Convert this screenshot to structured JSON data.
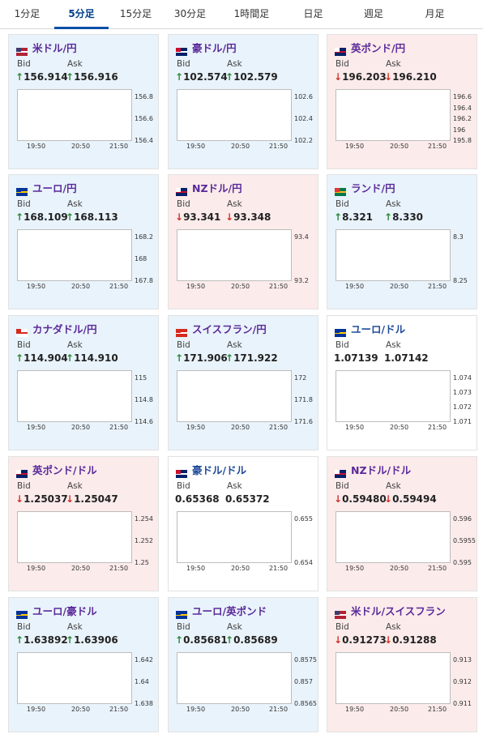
{
  "tabs": [
    {
      "label": "1分足",
      "active": false
    },
    {
      "label": "5分足",
      "active": true
    },
    {
      "label": "15分足",
      "active": false
    },
    {
      "label": "30分足",
      "active": false
    },
    {
      "label": "1時間足",
      "active": false
    },
    {
      "label": "日足",
      "active": false
    },
    {
      "label": "週足",
      "active": false
    },
    {
      "label": "月足",
      "active": false
    }
  ],
  "labels": {
    "bid": "Bid",
    "ask": "Ask"
  },
  "x_ticks": [
    "19:50",
    "20:50",
    "21:50"
  ],
  "pairs": [
    {
      "name": "米ドル/円",
      "flag": "us-flag",
      "trend": "up",
      "bid": "156.914",
      "ask": "156.916",
      "bid_dir": "up",
      "ask_dir": "up",
      "y_ticks": [
        "156.8",
        "156.6",
        "156.4"
      ]
    },
    {
      "name": "豪ドル/円",
      "flag": "au-flag",
      "trend": "up",
      "bid": "102.574",
      "ask": "102.579",
      "bid_dir": "up",
      "ask_dir": "up",
      "y_ticks": [
        "102.6",
        "102.4",
        "102.2"
      ]
    },
    {
      "name": "英ポンド/円",
      "flag": "gb-flag",
      "trend": "down",
      "bid": "196.203",
      "ask": "196.210",
      "bid_dir": "down",
      "ask_dir": "down",
      "y_ticks": [
        "196.6",
        "196.4",
        "196.2",
        "196",
        "195.8"
      ]
    },
    {
      "name": "ユーロ/円",
      "flag": "eu-flag",
      "trend": "up",
      "bid": "168.109",
      "ask": "168.113",
      "bid_dir": "up",
      "ask_dir": "up",
      "y_ticks": [
        "168.2",
        "168",
        "167.8"
      ]
    },
    {
      "name": "NZドル/円",
      "flag": "nz-flag",
      "trend": "down",
      "bid": "93.341",
      "ask": "93.348",
      "bid_dir": "down",
      "ask_dir": "down",
      "y_ticks": [
        "93.4",
        "93.2"
      ]
    },
    {
      "name": "ランド/円",
      "flag": "za-flag",
      "trend": "up",
      "bid": "8.321",
      "ask": "8.330",
      "bid_dir": "up",
      "ask_dir": "up",
      "y_ticks": [
        "8.3",
        "8.25"
      ]
    },
    {
      "name": "カナダドル/円",
      "flag": "ca-flag",
      "trend": "up",
      "bid": "114.904",
      "ask": "114.910",
      "bid_dir": "up",
      "ask_dir": "up",
      "y_ticks": [
        "115",
        "114.8",
        "114.6"
      ]
    },
    {
      "name": "スイスフラン/円",
      "flag": "ch-flag",
      "trend": "up",
      "bid": "171.906",
      "ask": "171.922",
      "bid_dir": "up",
      "ask_dir": "up",
      "y_ticks": [
        "172",
        "171.8",
        "171.6"
      ]
    },
    {
      "name": "ユーロ/ドル",
      "flag": "eu-us-flag",
      "trend": "flat",
      "bid": "1.07139",
      "ask": "1.07142",
      "bid_dir": "none",
      "ask_dir": "none",
      "y_ticks": [
        "1.074",
        "1.073",
        "1.072",
        "1.071"
      ]
    },
    {
      "name": "英ポンド/ドル",
      "flag": "gb-us-flag",
      "trend": "down",
      "bid": "1.25037",
      "ask": "1.25047",
      "bid_dir": "down",
      "ask_dir": "down",
      "y_ticks": [
        "1.254",
        "1.252",
        "1.25"
      ]
    },
    {
      "name": "豪ドル/ドル",
      "flag": "au-us-flag",
      "trend": "flat",
      "bid": "0.65368",
      "ask": "0.65372",
      "bid_dir": "none",
      "ask_dir": "none",
      "y_ticks": [
        "0.655",
        "0.654"
      ]
    },
    {
      "name": "NZドル/ドル",
      "flag": "nz-us-flag",
      "trend": "down",
      "bid": "0.59480",
      "ask": "0.59494",
      "bid_dir": "down",
      "ask_dir": "down",
      "y_ticks": [
        "0.596",
        "0.5955",
        "0.595"
      ]
    },
    {
      "name": "ユーロ/豪ドル",
      "flag": "eu-au-flag",
      "trend": "up",
      "bid": "1.63892",
      "ask": "1.63906",
      "bid_dir": "up",
      "ask_dir": "up",
      "y_ticks": [
        "1.642",
        "1.64",
        "1.638"
      ]
    },
    {
      "name": "ユーロ/英ポンド",
      "flag": "eu-gb-flag",
      "trend": "up",
      "bid": "0.85681",
      "ask": "0.85689",
      "bid_dir": "up",
      "ask_dir": "up",
      "y_ticks": [
        "0.8575",
        "0.857",
        "0.8565"
      ]
    },
    {
      "name": "米ドル/スイスフラン",
      "flag": "us-ch-flag",
      "trend": "down",
      "bid": "0.91273",
      "ask": "0.91288",
      "bid_dir": "down",
      "ask_dir": "down",
      "y_ticks": [
        "0.913",
        "0.912",
        "0.911"
      ]
    }
  ],
  "arrows": {
    "up": "↑",
    "down": "↓",
    "none": ""
  }
}
